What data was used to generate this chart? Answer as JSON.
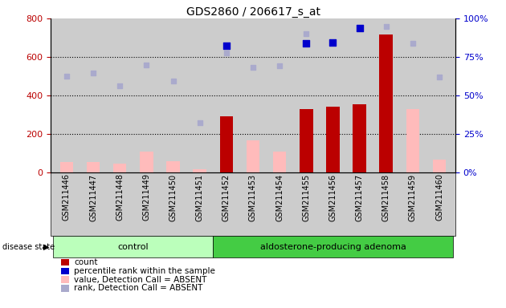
{
  "title": "GDS2860 / 206617_s_at",
  "samples": [
    "GSM211446",
    "GSM211447",
    "GSM211448",
    "GSM211449",
    "GSM211450",
    "GSM211451",
    "GSM211452",
    "GSM211453",
    "GSM211454",
    "GSM211455",
    "GSM211456",
    "GSM211457",
    "GSM211458",
    "GSM211459",
    "GSM211460"
  ],
  "n_control": 6,
  "n_adenoma": 9,
  "count_values": [
    null,
    null,
    null,
    null,
    null,
    null,
    290,
    null,
    null,
    330,
    340,
    355,
    715,
    null,
    null
  ],
  "count_absent": [
    55,
    55,
    45,
    110,
    60,
    15,
    null,
    165,
    110,
    null,
    null,
    null,
    null,
    330,
    65
  ],
  "rank_values": [
    null,
    null,
    null,
    null,
    null,
    null,
    660,
    null,
    null,
    670,
    675,
    750,
    null,
    null,
    null
  ],
  "rank_absent": [
    500,
    515,
    450,
    560,
    475,
    260,
    620,
    545,
    555,
    720,
    null,
    null,
    760,
    670,
    495
  ],
  "ylim_left": [
    0,
    800
  ],
  "ylim_right": [
    0,
    100
  ],
  "yticks_left": [
    0,
    200,
    400,
    600,
    800
  ],
  "yticks_right": [
    0,
    25,
    50,
    75,
    100
  ],
  "color_count": "#bb0000",
  "color_rank": "#0000cc",
  "color_count_absent": "#ffbbbb",
  "color_rank_absent": "#aaaacc",
  "bg_plot": "#cccccc",
  "bg_control": "#bbffbb",
  "bg_adenoma": "#44cc44",
  "legend_items": [
    {
      "label": "count",
      "color": "#bb0000"
    },
    {
      "label": "percentile rank within the sample",
      "color": "#0000cc"
    },
    {
      "label": "value, Detection Call = ABSENT",
      "color": "#ffbbbb"
    },
    {
      "label": "rank, Detection Call = ABSENT",
      "color": "#aaaacc"
    }
  ]
}
